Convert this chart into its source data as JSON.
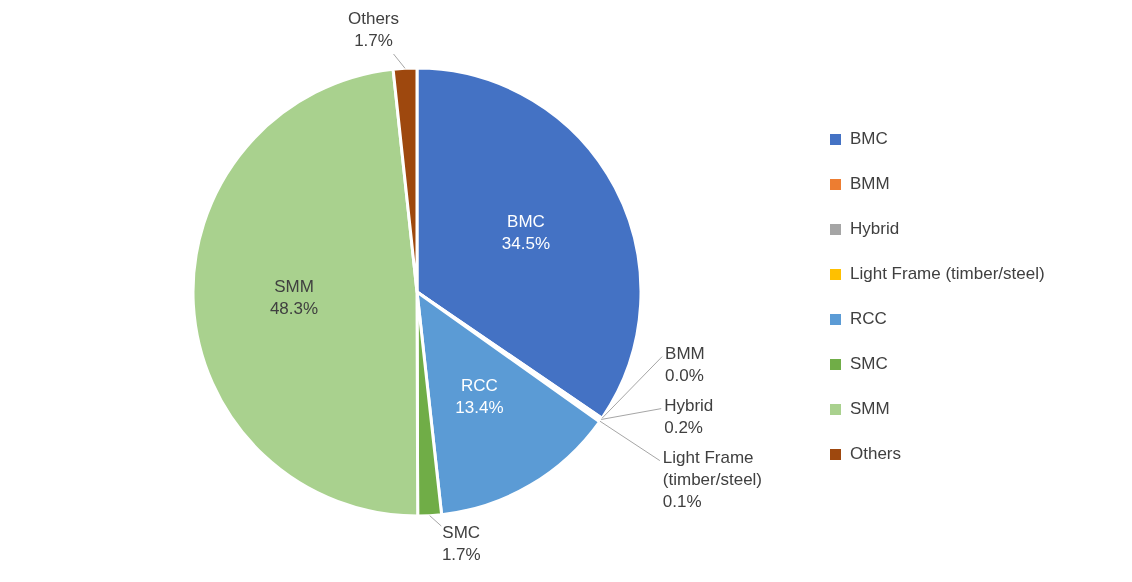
{
  "chart_data": {
    "type": "pie",
    "categories": [
      "BMC",
      "BMM",
      "Hybrid",
      "Light Frame (timber/steel)",
      "RCC",
      "SMC",
      "SMM",
      "Others"
    ],
    "values": [
      34.5,
      0.0,
      0.2,
      0.1,
      13.4,
      1.7,
      48.3,
      1.7
    ],
    "value_labels": [
      "34.5%",
      "0.0%",
      "0.2%",
      "0.1%",
      "13.4%",
      "1.7%",
      "48.3%",
      "1.7%"
    ],
    "colors": [
      "#4472c4",
      "#ed7d31",
      "#a5a5a5",
      "#ffc000",
      "#5b9bd5",
      "#70ad47",
      "#a9d18e",
      "#9e480e"
    ],
    "legend": "right"
  }
}
